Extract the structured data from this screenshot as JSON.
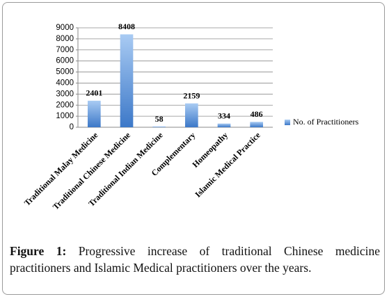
{
  "chart_data": {
    "type": "bar",
    "categories": [
      "Traditional Malay Medicine",
      "Traditional Chinese Medicine",
      "Traditional Indian Medicine",
      "Complementary",
      "Homeopathy",
      "Islamic Medical Practice"
    ],
    "series": [
      {
        "name": "No. of Practitioners",
        "color": "#4a86d4",
        "values": [
          2401,
          8408,
          58,
          2159,
          334,
          486
        ]
      }
    ],
    "ylim": [
      0,
      9000
    ],
    "yticks": [
      0,
      1000,
      2000,
      3000,
      4000,
      5000,
      6000,
      7000,
      8000,
      9000
    ],
    "grid": true,
    "legend": "right"
  },
  "caption": {
    "label": "Figure 1:",
    "text": "Progressive increase of traditional Chinese medicine practitioners and Islamic Medical practitioners over the years."
  }
}
